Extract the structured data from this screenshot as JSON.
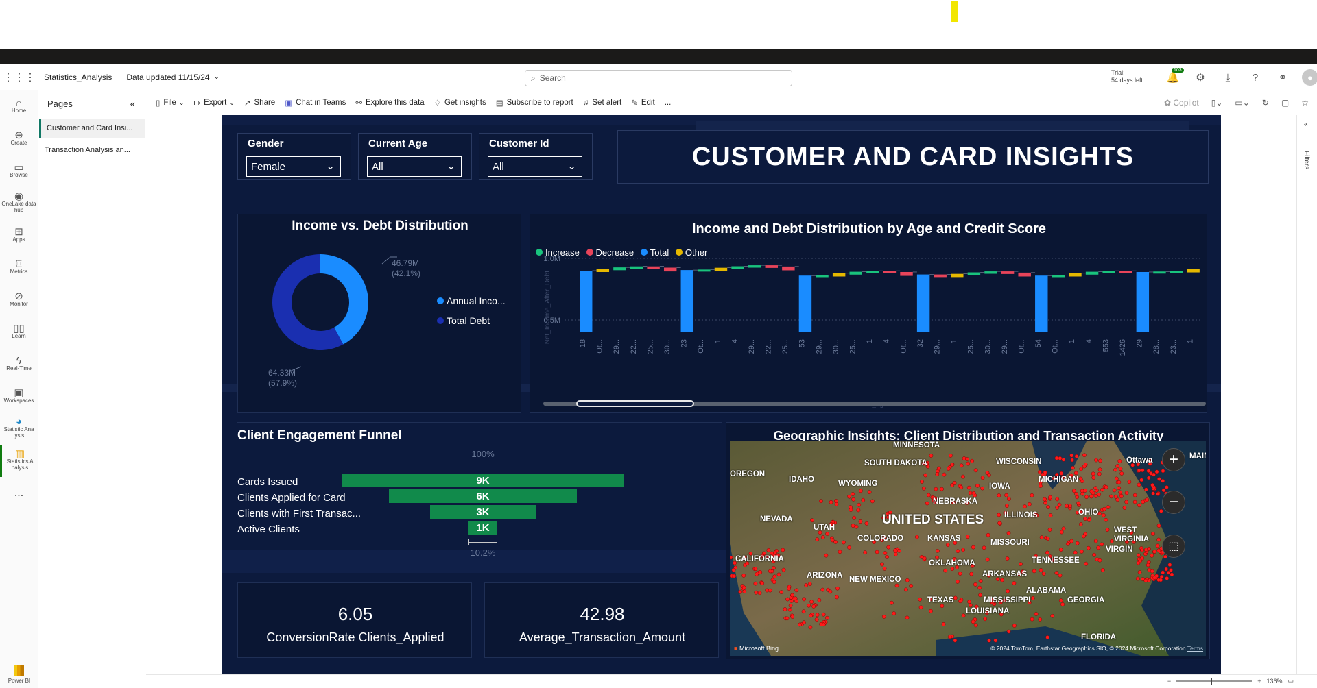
{
  "app": {
    "workspace": "Statistics_Analysis",
    "data_updated": "Data updated 11/15/24",
    "search_placeholder": "Search",
    "trial_line1": "Trial:",
    "trial_line2": "54 days left",
    "notifications": "103"
  },
  "leftnav": {
    "items": [
      "Home",
      "Create",
      "Browse",
      "OneLake data hub",
      "Apps",
      "Metrics",
      "Monitor",
      "Learn",
      "Real-Time",
      "Workspaces",
      "Statistic Ana lysis",
      "Statistics A nalysis"
    ],
    "more": "...",
    "product": "Power BI"
  },
  "pages": {
    "header": "Pages",
    "items": [
      "Customer and Card Insi...",
      "Transaction Analysis an..."
    ]
  },
  "toolbar": {
    "file": "File",
    "export": "Export",
    "share": "Share",
    "chat": "Chat in Teams",
    "explore": "Explore this data",
    "insights": "Get insights",
    "subscribe": "Subscribe to report",
    "alert": "Set alert",
    "edit": "Edit",
    "more": "...",
    "copilot": "Copilot"
  },
  "filters_label": "Filters",
  "report": {
    "title": "CUSTOMER AND CARD INSIGHTS",
    "slicers": [
      {
        "label": "Gender",
        "value": "Female"
      },
      {
        "label": "Current Age",
        "value": "All"
      },
      {
        "label": "Customer Id",
        "value": "All"
      }
    ],
    "donut": {
      "title": "Income vs. Debt Distribution",
      "label_a": "46.79M",
      "label_a_pct": "(42.1%)",
      "label_b": "64.33M",
      "label_b_pct": "(57.9%)",
      "legend": [
        "Annual Inco...",
        "Total Debt"
      ]
    },
    "waterfall": {
      "title": "Income and Debt Distribution by Age and Credit Score",
      "legend": [
        "Increase",
        "Decrease",
        "Total",
        "Other"
      ],
      "y_ticks": [
        "1.0M",
        "0.5M"
      ],
      "y_axis_label": "Net_Income_After_Debt",
      "x_axis_label": "current_age",
      "x_ticks": [
        "18",
        "Ot...",
        "29...",
        "22...",
        "25...",
        "30...",
        "23",
        "Ot...",
        "1",
        "4",
        "29...",
        "22...",
        "25...",
        "53",
        "29...",
        "30...",
        "25...",
        "1",
        "4",
        "Ot...",
        "32",
        "29...",
        "1",
        "25...",
        "30...",
        "29...",
        "Ot...",
        "54",
        "Ot...",
        "1",
        "4",
        "553",
        "1426",
        "29",
        "28...",
        "23...",
        "1"
      ]
    },
    "funnel": {
      "title": "Client Engagement Funnel",
      "top_pct": "100%",
      "bottom_pct": "10.2%",
      "rows": [
        {
          "label": "Cards Issued",
          "value": "9K",
          "ratio": 1.0
        },
        {
          "label": "Clients Applied for Card",
          "value": "6K",
          "ratio": 0.663
        },
        {
          "label": "Clients with First Transac...",
          "value": "3K",
          "ratio": 0.373
        },
        {
          "label": "Active Clients",
          "value": "1K",
          "ratio": 0.102
        }
      ]
    },
    "kpis": [
      {
        "value": "6.05",
        "name": "ConversionRate Clients_Applied"
      },
      {
        "value": "42.98",
        "name": "Average_Transaction_Amount"
      }
    ],
    "map": {
      "title": "Geographic Insights: Client Distribution and Transaction Activity",
      "labels": [
        "MINNESOTA",
        "SOUTH DAKOTA",
        "WISCONSIN",
        "Ottawa",
        "MAIN",
        "OREGON",
        "IDAHO",
        "WYOMING",
        "IOWA",
        "MICHIGAN",
        "NEBRASKA",
        "NEVADA",
        "UTAH",
        "UNITED STATES",
        "ILLINOIS",
        "OHIO",
        "COLORADO",
        "KANSAS",
        "MISSOURI",
        "WEST",
        "VIRGINIA",
        "CALIFORNIA",
        "OKLAHOMA",
        "TENNESSEE",
        "ARKANSAS",
        "ARIZONA",
        "NEW MEXICO",
        "ALABAMA",
        "TEXAS",
        "MISSISSIPPI",
        "GEORGIA",
        "LOUISIANA",
        "FLORIDA",
        "VIRGIN"
      ],
      "provider": "Microsoft Bing",
      "attribution": "© 2024 TomTom, Earthstar Geographics SIO, © 2024 Microsoft Corporation",
      "terms": "Terms"
    }
  },
  "status": {
    "zoom": "136%"
  }
}
